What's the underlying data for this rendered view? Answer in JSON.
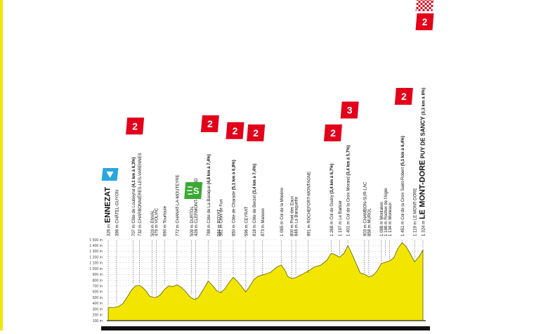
{
  "chart_data": {
    "type": "area",
    "title": "",
    "xlabel": "",
    "ylabel": "",
    "ylim": [
      100,
      1500
    ],
    "yticks": [
      "100 m",
      "200 m",
      "300 m",
      "400 m",
      "500 m",
      "600 m",
      "700 m",
      "800 m",
      "900 m",
      "1 000 m",
      "1 100 m",
      "1 200 m",
      "1 300 m",
      "1 400 m",
      "1 500 m"
    ],
    "grid": true,
    "fill_color": "#f2e600",
    "line_color": "#5a5a00",
    "profile": [
      [
        0,
        326
      ],
      [
        3,
        330
      ],
      [
        5,
        345
      ],
      [
        7,
        395
      ],
      [
        9,
        500
      ],
      [
        11,
        620
      ],
      [
        13,
        700
      ],
      [
        15,
        710
      ],
      [
        17,
        660
      ],
      [
        18,
        620
      ],
      [
        20,
        520
      ],
      [
        22,
        503
      ],
      [
        23,
        500
      ],
      [
        25,
        545
      ],
      [
        27,
        640
      ],
      [
        29,
        700
      ],
      [
        31,
        690
      ],
      [
        33,
        720
      ],
      [
        35,
        680
      ],
      [
        37,
        610
      ],
      [
        39,
        520
      ],
      [
        41,
        470
      ],
      [
        43,
        490
      ],
      [
        45,
        600
      ],
      [
        47,
        720
      ],
      [
        48,
        788
      ],
      [
        50,
        710
      ],
      [
        52,
        620
      ],
      [
        54,
        584
      ],
      [
        56,
        650
      ],
      [
        58,
        760
      ],
      [
        60,
        850
      ],
      [
        62,
        780
      ],
      [
        64,
        690
      ],
      [
        66,
        596
      ],
      [
        68,
        700
      ],
      [
        70,
        818
      ],
      [
        72,
        870
      ],
      [
        75,
        900
      ],
      [
        78,
        940
      ],
      [
        81,
        1030
      ],
      [
        83,
        1065
      ],
      [
        85,
        960
      ],
      [
        86,
        870
      ],
      [
        88,
        830
      ],
      [
        90,
        848
      ],
      [
        93,
        900
      ],
      [
        96,
        960
      ],
      [
        99,
        1030
      ],
      [
        102,
        1060
      ],
      [
        105,
        1150
      ],
      [
        107,
        1268
      ],
      [
        109,
        1240
      ],
      [
        111,
        1197
      ],
      [
        113,
        1260
      ],
      [
        115,
        1401
      ],
      [
        117,
        1250
      ],
      [
        119,
        1080
      ],
      [
        121,
        920
      ],
      [
        123,
        903
      ],
      [
        125,
        858
      ],
      [
        127,
        880
      ],
      [
        129,
        960
      ],
      [
        131,
        1088
      ],
      [
        133,
        1110
      ],
      [
        135,
        1134
      ],
      [
        137,
        1188
      ],
      [
        139,
        1350
      ],
      [
        141,
        1451
      ],
      [
        143,
        1380
      ],
      [
        145,
        1250
      ],
      [
        147,
        1119
      ],
      [
        149,
        1200
      ],
      [
        151,
        1324
      ]
    ],
    "waypoints": [
      {
        "id": "ennezat",
        "label": "ENNEZAT",
        "alt": "326 m",
        "x": 0,
        "y": 326,
        "major": true,
        "symbol": "flag-blue"
      },
      {
        "id": "chatel-guyon",
        "label": "CHÂTEL-GUYON",
        "alt": "396 m",
        "x": 4,
        "y": 396
      },
      {
        "id": "loubeyrat",
        "label": "Côte de Loubeyrat",
        "climb": "(4,1 km à 6,3%)",
        "alt": "707 m",
        "x": 12,
        "y": 707,
        "cat": "2"
      },
      {
        "id": "charbonnieres",
        "label": "CHARBONNIÈRES-LES-VARENNES",
        "alt": "732 m",
        "x": 15,
        "y": 732
      },
      {
        "id": "enval",
        "label": "ENVAL",
        "alt": "503 m",
        "x": 21,
        "y": 503
      },
      {
        "id": "volvic",
        "label": "VOLVIC",
        "alt": "479 m",
        "x": 23,
        "y": 479
      },
      {
        "id": "tourtoule",
        "label": "Tourtoule",
        "alt": "690 m",
        "x": 27,
        "y": 690
      },
      {
        "id": "chanat",
        "label": "CHANAT-LA-MOUTEYRE",
        "alt": "772 m",
        "x": 33,
        "y": 772
      },
      {
        "id": "durtol",
        "label": "DURTOL",
        "alt": "509 m",
        "x": 40,
        "y": 509,
        "symbol": "sprint"
      },
      {
        "id": "clermont",
        "label": "CLERMONT-FERRAND",
        "alt": "428 m",
        "x": 42,
        "y": 428
      },
      {
        "id": "baraque",
        "label": "Côte de La Baraque",
        "climb": "(4,8 km à 7,4%)",
        "alt": "788 m",
        "x": 48,
        "y": 788,
        "cat": "2"
      },
      {
        "id": "royat",
        "label": "ROYAT",
        "alt": "584 m",
        "x": 53,
        "y": 584
      },
      {
        "id": "croix-fun",
        "label": "Croix de Fun",
        "alt": "561 m",
        "x": 54,
        "y": 561
      },
      {
        "id": "charade",
        "label": "Côte de Charade",
        "climb": "(5,1 km à 6,8%)",
        "alt": "850 m",
        "x": 60,
        "y": 850,
        "cat": "2"
      },
      {
        "id": "ceyrat",
        "label": "CEYRAT",
        "alt": "596 m",
        "x": 66,
        "y": 596
      },
      {
        "id": "berzet",
        "label": "Côte de Berzet",
        "climb": "(3,4 km à 7,4%)",
        "alt": "818 m",
        "x": 70,
        "y": 818,
        "cat": "2"
      },
      {
        "id": "manson",
        "label": "Manson",
        "alt": "873 m",
        "x": 74,
        "y": 873
      },
      {
        "id": "moreno",
        "label": "Col de la Moréno",
        "alt": "1 065 m",
        "x": 83,
        "y": 1065
      },
      {
        "id": "pont-eaux",
        "label": "Pont des Eaux",
        "alt": "800 m",
        "x": 88,
        "y": 800
      },
      {
        "id": "baraquette",
        "label": "La Baraquette",
        "alt": "848 m",
        "x": 90,
        "y": 848
      },
      {
        "id": "rochefort",
        "label": "ROCHEFORT-MONTAGNE",
        "alt": "891 m",
        "x": 96,
        "y": 891
      },
      {
        "id": "guery",
        "label": "Col de Guéry",
        "climb": "(3,4 km à 6,7%)",
        "alt": "1 268 m",
        "x": 107,
        "y": 1268,
        "cat": "2"
      },
      {
        "id": "barbier",
        "label": "Le Barbier",
        "alt": "1 197 m",
        "x": 111,
        "y": 1197
      },
      {
        "id": "croix-morand",
        "label": "Col de la Croix Morand",
        "climb": "(3,4 km à 5,7%)",
        "alt": "1 401 m",
        "x": 115,
        "y": 1401,
        "cat": "3"
      },
      {
        "id": "chambon",
        "label": "CHAMBON-SUR-LAC",
        "alt": "903 m",
        "x": 123,
        "y": 903
      },
      {
        "id": "murol",
        "label": "MUROL",
        "alt": "858 m",
        "x": 125,
        "y": 858
      },
      {
        "id": "montaleix",
        "label": "Montaleix",
        "alt": "1 088 m",
        "x": 131,
        "y": 1088
      },
      {
        "id": "rocher-aigle",
        "label": "Rocher de l'Aigle",
        "alt": "1 188 m",
        "x": 133,
        "y": 1188
      },
      {
        "id": "moneaux",
        "label": "Moneaux",
        "alt": "1 134 m",
        "x": 135,
        "y": 1134
      },
      {
        "id": "croix-st-robert",
        "label": "Col de la Croix Saint-Robert",
        "climb": "(5,1 km à 6,4%)",
        "alt": "1 451 m",
        "x": 141,
        "y": 1451,
        "cat": "2"
      },
      {
        "id": "le-mont-dore",
        "label": "LE MONT-DORE",
        "alt": "1 119 m",
        "x": 147,
        "y": 1119
      },
      {
        "id": "puy-sancy",
        "label": "LE MONT-DORE",
        "label2": "PUY DE SANCY",
        "climb": "(3,3 km à 8%)",
        "alt": "1 324 m",
        "x": 151,
        "y": 1324,
        "major": true,
        "cat": "2",
        "finish": true
      }
    ]
  },
  "colors": {
    "fill": "#f2e600",
    "profile_line": "#5a5a00",
    "climb_badge": "#e2001a",
    "sprint_badge": "#3aa935",
    "start_flag": "#2aa6e0",
    "text": "#111111",
    "dot_line": "#333333",
    "grid": "#d4d4d4"
  }
}
